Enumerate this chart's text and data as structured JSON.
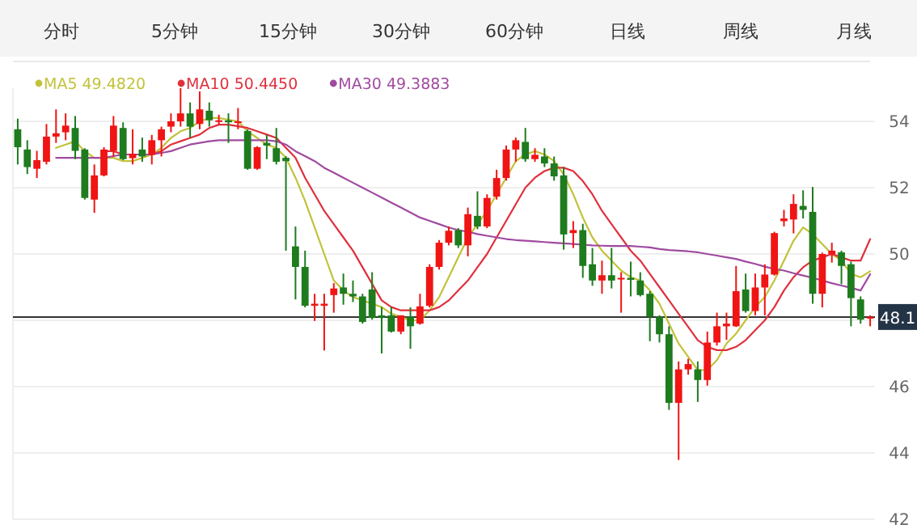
{
  "chart_data": {
    "type": "candlestick",
    "annotations": [
      "分时",
      "5分钟",
      "15分钟",
      "30分钟",
      "60分钟",
      "日线",
      "周线",
      "月线"
    ],
    "categories": [
      null,
      null,
      null,
      null,
      null,
      null,
      null,
      null,
      null,
      null,
      null,
      null,
      null,
      null,
      null,
      null,
      null,
      null,
      null,
      null,
      null,
      null,
      null,
      null,
      null,
      null,
      null,
      null,
      null,
      null,
      null,
      null,
      null,
      null,
      null,
      null,
      null,
      null,
      null,
      null,
      null,
      null,
      null,
      null,
      null,
      null,
      null,
      null,
      null,
      null,
      null,
      null,
      null,
      null,
      null,
      null,
      null,
      null,
      null,
      null,
      null,
      null,
      null,
      null,
      null,
      null,
      null,
      null,
      null,
      null,
      null,
      null,
      null,
      null,
      null,
      null,
      null,
      null,
      null,
      null,
      null,
      null,
      null,
      null,
      null,
      null,
      null,
      null,
      null,
      null
    ],
    "ohlc": [
      [
        53.76,
        54.08,
        52.7,
        53.22
      ],
      [
        53.15,
        53.43,
        52.41,
        52.62
      ],
      [
        52.57,
        53.11,
        52.29,
        52.83
      ],
      [
        52.78,
        53.92,
        52.7,
        53.54
      ],
      [
        53.54,
        54.36,
        53.35,
        53.64
      ],
      [
        53.67,
        54.24,
        53.43,
        53.87
      ],
      [
        53.8,
        54.16,
        52.86,
        53.11
      ],
      [
        53.15,
        53.19,
        51.64,
        51.69
      ],
      [
        51.64,
        52.7,
        51.24,
        52.37
      ],
      [
        52.37,
        53.22,
        52.34,
        53.15
      ],
      [
        53.11,
        54.16,
        52.94,
        53.87
      ],
      [
        53.8,
        53.97,
        52.83,
        52.86
      ],
      [
        52.89,
        53.76,
        52.7,
        53.02
      ],
      [
        53.15,
        53.51,
        52.78,
        52.94
      ],
      [
        52.99,
        53.59,
        52.7,
        53.43
      ],
      [
        53.43,
        53.84,
        52.94,
        53.76
      ],
      [
        53.84,
        54.24,
        53.67,
        54.0
      ],
      [
        54.0,
        55.0,
        53.84,
        54.24
      ],
      [
        54.24,
        54.57,
        53.51,
        53.84
      ],
      [
        53.92,
        54.9,
        53.76,
        54.36
      ],
      [
        54.32,
        54.57,
        53.84,
        54.03
      ],
      [
        54.0,
        54.2,
        53.9,
        54.03
      ],
      [
        54.03,
        54.24,
        53.35,
        53.97
      ],
      [
        53.95,
        54.4,
        53.76,
        54.0
      ],
      [
        53.71,
        53.76,
        52.54,
        52.57
      ],
      [
        52.57,
        53.25,
        52.54,
        53.22
      ],
      [
        53.35,
        53.59,
        52.86,
        53.27
      ],
      [
        53.19,
        53.8,
        52.7,
        52.78
      ],
      [
        52.9,
        52.95,
        50.1,
        52.8
      ],
      [
        50.23,
        50.83,
        48.63,
        49.61
      ],
      [
        49.61,
        50.1,
        48.39,
        48.44
      ],
      [
        48.44,
        48.8,
        47.98,
        48.5
      ],
      [
        48.44,
        48.8,
        47.09,
        48.5
      ],
      [
        48.76,
        49.12,
        48.23,
        48.96
      ],
      [
        48.99,
        49.41,
        48.47,
        48.8
      ],
      [
        48.8,
        49.2,
        48.55,
        48.72
      ],
      [
        48.72,
        48.8,
        47.9,
        47.95
      ],
      [
        48.93,
        49.45,
        48.02,
        48.07
      ],
      [
        48.15,
        48.4,
        47.0,
        48.07
      ],
      [
        48.15,
        48.4,
        47.63,
        47.66
      ],
      [
        47.66,
        48.15,
        47.58,
        48.15
      ],
      [
        48.11,
        48.39,
        47.14,
        47.82
      ],
      [
        47.9,
        48.8,
        47.87,
        48.42
      ],
      [
        48.44,
        49.69,
        48.39,
        49.61
      ],
      [
        49.61,
        50.42,
        49.53,
        50.34
      ],
      [
        50.34,
        50.83,
        50.26,
        50.7
      ],
      [
        50.72,
        50.78,
        50.18,
        50.26
      ],
      [
        50.26,
        51.4,
        49.93,
        51.2
      ],
      [
        51.15,
        51.89,
        50.75,
        50.83
      ],
      [
        50.83,
        51.8,
        50.78,
        51.69
      ],
      [
        51.73,
        52.54,
        51.64,
        52.29
      ],
      [
        52.29,
        53.27,
        52.21,
        53.15
      ],
      [
        53.15,
        53.51,
        52.78,
        53.43
      ],
      [
        53.38,
        53.8,
        52.78,
        52.86
      ],
      [
        52.86,
        53.19,
        52.78,
        52.99
      ],
      [
        52.94,
        53.19,
        52.62,
        52.73
      ],
      [
        52.73,
        52.94,
        52.21,
        52.34
      ],
      [
        52.37,
        52.62,
        50.13,
        50.59
      ],
      [
        50.63,
        50.99,
        50.18,
        50.72
      ],
      [
        50.72,
        50.91,
        49.28,
        49.64
      ],
      [
        49.69,
        50.18,
        49.04,
        49.2
      ],
      [
        49.2,
        49.8,
        48.8,
        49.36
      ],
      [
        49.36,
        50.18,
        48.96,
        49.2
      ],
      [
        49.25,
        49.45,
        48.23,
        49.28
      ],
      [
        49.28,
        49.77,
        48.72,
        49.22
      ],
      [
        49.2,
        49.45,
        48.72,
        48.76
      ],
      [
        48.8,
        48.88,
        47.37,
        48.11
      ],
      [
        48.11,
        48.15,
        47.33,
        47.58
      ],
      [
        47.58,
        47.82,
        45.3,
        45.51
      ],
      [
        45.51,
        46.76,
        43.79,
        46.52
      ],
      [
        46.52,
        46.84,
        46.36,
        46.68
      ],
      [
        46.52,
        46.76,
        45.54,
        46.2
      ],
      [
        46.2,
        47.66,
        46.03,
        47.33
      ],
      [
        47.33,
        48.23,
        47.24,
        47.82
      ],
      [
        47.82,
        48.23,
        47.41,
        47.9
      ],
      [
        47.82,
        49.64,
        47.8,
        48.88
      ],
      [
        48.93,
        49.41,
        48.23,
        48.28
      ],
      [
        48.28,
        49.41,
        48.15,
        48.99
      ],
      [
        48.99,
        49.69,
        48.15,
        49.38
      ],
      [
        49.38,
        50.67,
        49.35,
        50.63
      ],
      [
        50.99,
        51.33,
        50.83,
        51.07
      ],
      [
        51.04,
        51.8,
        50.62,
        51.51
      ],
      [
        51.45,
        51.92,
        51.07,
        51.33
      ],
      [
        51.27,
        52.02,
        48.5,
        48.8
      ],
      [
        48.8,
        50.04,
        48.39,
        50.0
      ],
      [
        50.0,
        50.34,
        49.74,
        50.1
      ],
      [
        50.05,
        50.1,
        49.09,
        49.64
      ],
      [
        49.69,
        49.77,
        47.82,
        48.67
      ],
      [
        48.63,
        48.72,
        47.9,
        48.02
      ],
      [
        48.07,
        48.15,
        47.82,
        48.1
      ]
    ],
    "colors": [
      "#1e7b1e",
      "#1e7b1e",
      "#f01414",
      "#f01414",
      "#f01414",
      "#f01414",
      "#1e7b1e",
      "#1e7b1e",
      "#f01414",
      "#f01414",
      "#f01414",
      "#1e7b1e",
      "#f01414",
      "#1e7b1e",
      "#f01414",
      "#f01414",
      "#f01414",
      "#f01414",
      "#1e7b1e",
      "#f01414",
      "#1e7b1e",
      "#f01414",
      "#1e7b1e",
      "#f01414",
      "#1e7b1e",
      "#f01414",
      "#1e7b1e",
      "#1e7b1e",
      "#1e7b1e",
      "#1e7b1e",
      "#1e7b1e",
      "#f01414",
      "#f01414",
      "#f01414",
      "#1e7b1e",
      "#1e7b1e",
      "#1e7b1e",
      "#1e7b1e",
      "#1e7b1e",
      "#1e7b1e",
      "#f01414",
      "#1e7b1e",
      "#f01414",
      "#f01414",
      "#f01414",
      "#f01414",
      "#1e7b1e",
      "#f01414",
      "#1e7b1e",
      "#f01414",
      "#f01414",
      "#f01414",
      "#f01414",
      "#1e7b1e",
      "#f01414",
      "#1e7b1e",
      "#1e7b1e",
      "#1e7b1e",
      "#f01414",
      "#1e7b1e",
      "#1e7b1e",
      "#f01414",
      "#1e7b1e",
      "#f01414",
      "#1e7b1e",
      "#1e7b1e",
      "#1e7b1e",
      "#1e7b1e",
      "#1e7b1e",
      "#f01414",
      "#f01414",
      "#1e7b1e",
      "#f01414",
      "#f01414",
      "#f01414",
      "#f01414",
      "#1e7b1e",
      "#f01414",
      "#f01414",
      "#f01414",
      "#f01414",
      "#f01414",
      "#1e7b1e",
      "#1e7b1e",
      "#f01414",
      "#f01414",
      "#1e7b1e",
      "#1e7b1e",
      "#1e7b1e",
      "#f01414"
    ],
    "series": [
      {
        "name": "MA5 49.4820",
        "type": "line",
        "color": "#c2c23a",
        "values": [
          null,
          null,
          null,
          null,
          53.2,
          53.3,
          53.4,
          53.1,
          52.9,
          52.9,
          52.9,
          52.8,
          52.8,
          52.9,
          53.0,
          53.2,
          53.5,
          53.7,
          53.8,
          54.0,
          54.1,
          54.1,
          54.05,
          54.0,
          53.7,
          53.5,
          53.3,
          53.2,
          52.9,
          52.3,
          51.6,
          50.8,
          50.0,
          49.2,
          48.9,
          48.7,
          48.6,
          48.5,
          48.4,
          48.2,
          48.1,
          48.0,
          48.0,
          48.3,
          48.7,
          49.3,
          49.9,
          50.5,
          50.9,
          51.3,
          51.8,
          52.3,
          52.8,
          53.0,
          53.1,
          53.0,
          52.8,
          52.4,
          51.8,
          51.1,
          50.5,
          50.1,
          49.8,
          49.5,
          49.3,
          49.2,
          48.9,
          48.5,
          47.9,
          47.3,
          46.9,
          46.5,
          46.5,
          46.8,
          47.3,
          47.6,
          48.0,
          48.4,
          48.7,
          49.2,
          49.8,
          50.4,
          50.8,
          50.6,
          50.3,
          50.0,
          49.8,
          49.4,
          49.3,
          49.48
        ]
      },
      {
        "name": "MA10 50.4450",
        "type": "line",
        "color": "#e0303c",
        "values": [
          null,
          null,
          null,
          null,
          null,
          null,
          null,
          null,
          null,
          53.1,
          53.1,
          53.0,
          53.0,
          53.0,
          53.0,
          53.1,
          53.3,
          53.4,
          53.5,
          53.6,
          53.8,
          53.9,
          53.9,
          53.85,
          53.8,
          53.7,
          53.6,
          53.5,
          53.2,
          52.9,
          52.3,
          51.8,
          51.3,
          50.9,
          50.5,
          50.1,
          49.6,
          49.1,
          48.6,
          48.4,
          48.3,
          48.3,
          48.3,
          48.3,
          48.4,
          48.6,
          48.9,
          49.2,
          49.6,
          50.0,
          50.5,
          51.0,
          51.5,
          52.0,
          52.3,
          52.5,
          52.6,
          52.6,
          52.5,
          52.2,
          51.8,
          51.3,
          50.9,
          50.5,
          50.1,
          49.8,
          49.4,
          49.0,
          48.6,
          48.2,
          47.8,
          47.4,
          47.2,
          47.1,
          47.1,
          47.2,
          47.4,
          47.7,
          48.0,
          48.4,
          48.9,
          49.3,
          49.6,
          49.8,
          49.9,
          50.0,
          49.9,
          49.8,
          49.8,
          50.45
        ]
      },
      {
        "name": "MA30 49.3883",
        "type": "line",
        "color": "#a04aa0",
        "values": [
          null,
          null,
          null,
          null,
          52.9,
          52.9,
          52.9,
          52.9,
          52.9,
          52.9,
          52.95,
          53.0,
          53.0,
          53.0,
          53.0,
          53.05,
          53.1,
          53.2,
          53.3,
          53.35,
          53.4,
          53.43,
          53.43,
          53.43,
          53.43,
          53.43,
          53.43,
          53.4,
          53.3,
          53.1,
          52.95,
          52.8,
          52.6,
          52.45,
          52.3,
          52.15,
          52.0,
          51.85,
          51.7,
          51.55,
          51.4,
          51.25,
          51.1,
          51.0,
          50.9,
          50.8,
          50.72,
          50.67,
          50.6,
          50.55,
          50.5,
          50.45,
          50.42,
          50.4,
          50.38,
          50.36,
          50.34,
          50.32,
          50.3,
          50.28,
          50.26,
          50.25,
          50.24,
          50.24,
          50.24,
          50.22,
          50.2,
          50.15,
          50.12,
          50.1,
          50.08,
          50.05,
          50.0,
          49.95,
          49.9,
          49.85,
          49.77,
          49.7,
          49.62,
          49.55,
          49.5,
          49.42,
          49.35,
          49.28,
          49.2,
          49.12,
          49.05,
          48.98,
          48.9,
          49.39
        ]
      }
    ],
    "ylim": [
      42,
      55
    ],
    "yticks": [
      42,
      44,
      46,
      {
        "value": 48,
        "label": null
      },
      50,
      52,
      54
    ],
    "grid": "y",
    "legend": "top left",
    "tick_labels": "y",
    "ref_lines": [
      {
        "axis": "y",
        "value": 48.1,
        "label": "48.1",
        "color": "#333333"
      }
    ]
  }
}
